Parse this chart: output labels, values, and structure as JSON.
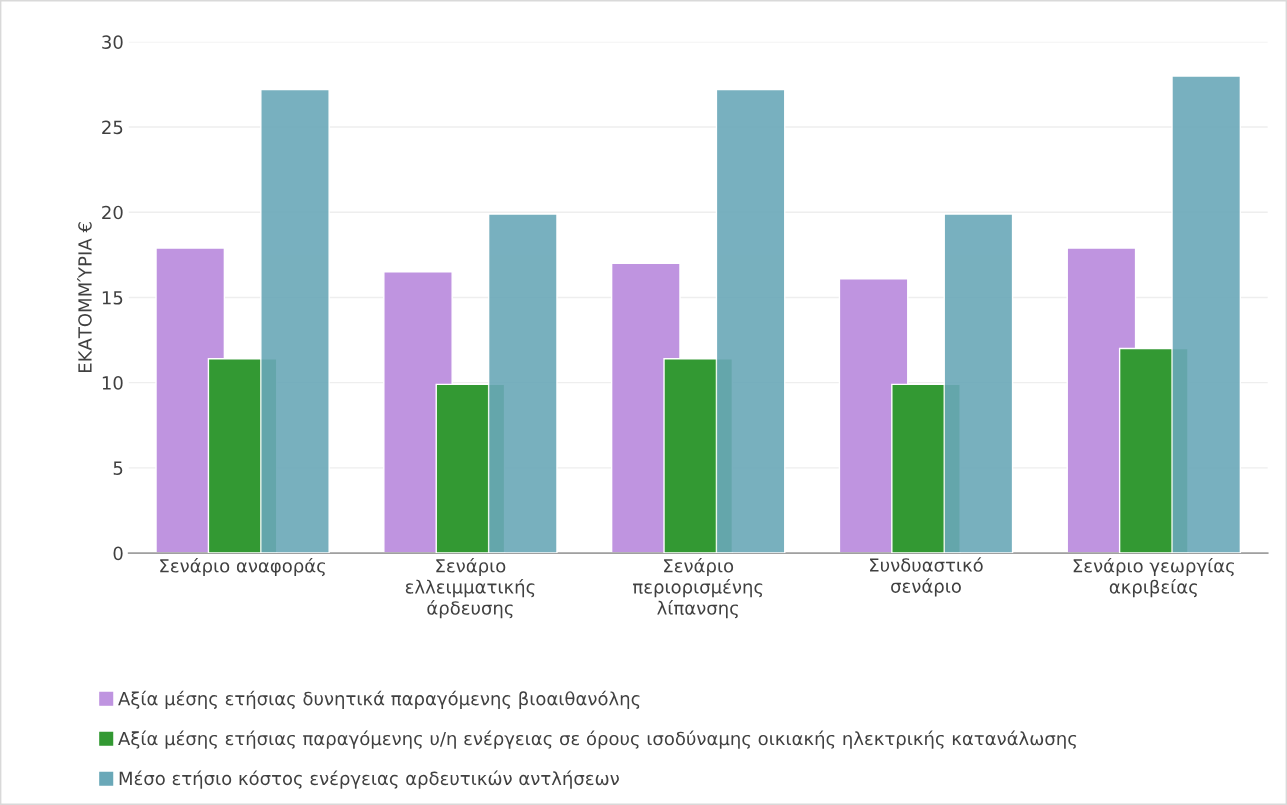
{
  "chart_data": {
    "type": "bar",
    "ylabel": "ΕΚΑΤΟΜΜΎΡΙΑ €",
    "categories": [
      "Σενάριο αναφοράς",
      "Σενάριο\nελλειμματικής\nάρδευσης",
      "Σενάριο\nπεριορισμένης\nλίπανσης",
      "Συνδυαστικό\nσενάριο",
      "Σενάριο γεωργίας\nακριβείας"
    ],
    "series": [
      {
        "name": "Αξία μέσης ετήσιας δυνητικά παραγόμενης βιοαιθανόλης",
        "color": "#bf94e0",
        "values": [
          17.9,
          16.5,
          17.0,
          16.1,
          17.9
        ]
      },
      {
        "name": "Αξία μέσης ετήσιας παραγόμενης υ/η ενέργειας σε όρους ισοδύναμης οικιακής ηλεκτρικής κατανάλωσης",
        "color": "#339933",
        "values": [
          11.4,
          9.9,
          11.4,
          9.9,
          12.0
        ]
      },
      {
        "name": "Μέσο ετήσιο κόστος ενέργειας αρδευτικών αντλήσεων",
        "color": "#6aa8b8",
        "values": [
          27.2,
          19.9,
          27.2,
          19.9,
          28.0
        ]
      }
    ],
    "ylim": [
      0,
      30
    ],
    "yticks": [
      0,
      5,
      10,
      15,
      20,
      25,
      30
    ],
    "grid": "y",
    "legend": "bottom"
  }
}
